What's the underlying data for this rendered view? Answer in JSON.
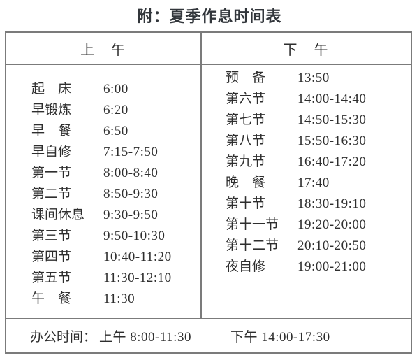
{
  "title": "附：夏季作息时间表",
  "table": {
    "header": {
      "left": "上　午",
      "right": "下　午"
    },
    "morning": [
      {
        "label": "起　床",
        "time": "6:00"
      },
      {
        "label": "早锻炼",
        "time": "6:20"
      },
      {
        "label": "早　餐",
        "time": "6:50"
      },
      {
        "label": "早自修",
        "time": "7:15-7:50"
      },
      {
        "label": "第一节",
        "time": "8:00-8:40"
      },
      {
        "label": "第二节",
        "time": "8:50-9:30"
      },
      {
        "label": "课间休息",
        "time": "9:30-9:50"
      },
      {
        "label": "第三节",
        "time": "9:50-10:30"
      },
      {
        "label": "第四节",
        "time": "10:40-11:20"
      },
      {
        "label": "第五节",
        "time": "11:30-12:10"
      },
      {
        "label": "午　餐",
        "time": "11:30"
      }
    ],
    "afternoon": [
      {
        "label": "预　备",
        "time": "13:50"
      },
      {
        "label": "第六节",
        "time": "14:00-14:40"
      },
      {
        "label": "第七节",
        "time": "14:50-15:30"
      },
      {
        "label": "第八节",
        "time": "15:50-16:30"
      },
      {
        "label": "第九节",
        "time": "16:40-17:20"
      },
      {
        "label": "晚　餐",
        "time": "17:40"
      },
      {
        "label": "第十节",
        "time": "18:30-19:10"
      },
      {
        "label": "第十一节",
        "time": "19:20-20:00"
      },
      {
        "label": "第十二节",
        "time": "20:10-20:50"
      },
      {
        "label": "夜自修",
        "time": "19:00-21:00"
      }
    ],
    "footer": {
      "label": "办公时间：",
      "morning_hours": "上午 8:00-11:30",
      "afternoon_hours": "下午 14:00-17:30"
    }
  },
  "colors": {
    "border": "#7b7b7b",
    "text": "#2e2e2e",
    "title_text": "#32363b",
    "background": "#ffffff"
  }
}
